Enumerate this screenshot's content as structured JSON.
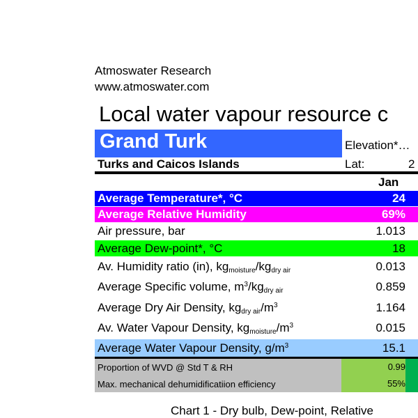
{
  "header": {
    "org": "Atmoswater Research",
    "url": "www.atmoswater.com",
    "title": "Local water vapour resource c"
  },
  "location": {
    "name": "Grand Turk",
    "country": "Turks and Caicos Islands",
    "elevation_label": "Elevation*…",
    "lat_label": "Lat:",
    "lat_value": "2"
  },
  "column": "Jan",
  "rows": [
    {
      "label": "Average Temperature*, °C",
      "value": "24",
      "bg": "#0000ff"
    },
    {
      "label": "Average Relative Humidity",
      "value": "69%",
      "bg": "#ff00ff"
    },
    {
      "label": "Air pressure, bar",
      "value": "1.013"
    },
    {
      "label": "Average Dew-point*, °C",
      "value": "18",
      "bg": "#00ff00"
    },
    {
      "label": "Av. Humidity ratio (in), kg",
      "s1": "moisture",
      "m": "/kg",
      "s2": "dry air",
      "value": "0.013"
    },
    {
      "label": "Average Specific volume, m",
      "sup": "3",
      "m": "/kg",
      "s2": "dry air",
      "value": "0.859"
    },
    {
      "label": "Average Dry Air Density, kg",
      "s1": "dry air",
      "m": "/m",
      "sup": "3",
      "value": "1.164"
    },
    {
      "label": "Av. Water Vapour Density, kg",
      "s1": "moisture",
      "m": "/m",
      "sup": "3",
      "value": "0.015"
    },
    {
      "label": "Average Water Vapour Density, g/m",
      "sup": "3",
      "value": "15.1",
      "bg": "#99ccff"
    }
  ],
  "footer_rows": [
    {
      "label": "Proportion of WVD @ Std T & RH",
      "value": "0.99"
    },
    {
      "label": "Max. mechanical dehumidificatiion efficiency",
      "value": "55%"
    }
  ],
  "chart_title": "Chart 1 - Dry bulb, Dew-point, Relative"
}
